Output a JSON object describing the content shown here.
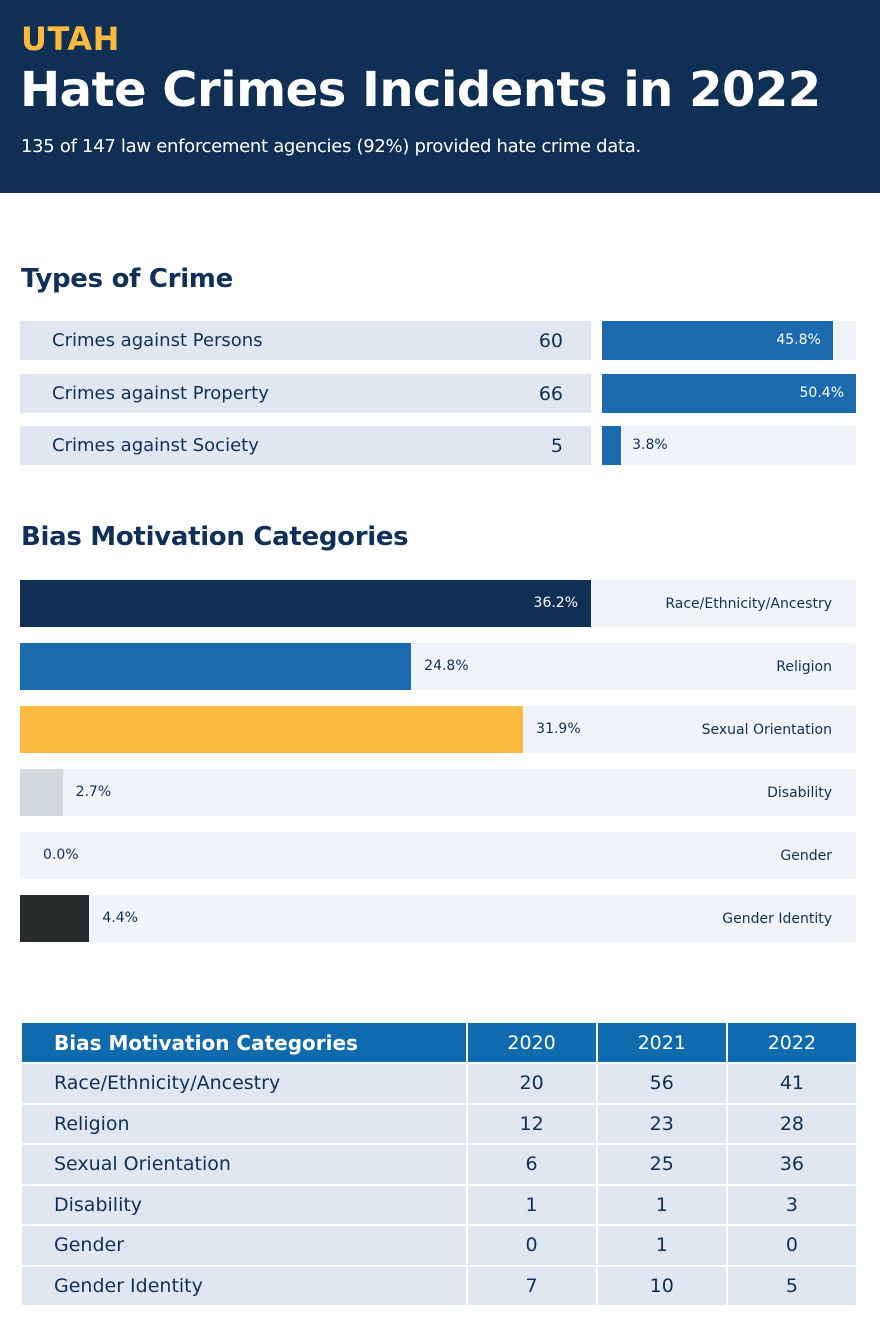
{
  "header": {
    "state": "UTAH",
    "title": "Hate Crimes Incidents in 2022",
    "subtitle": "135 of 147 law enforcement agencies (92%) provided hate crime data."
  },
  "colors": {
    "header_bg": "#0f2f55",
    "accent": "#fbb93f",
    "bar_blue": "#1a6aad",
    "table_header": "#0f6aae"
  },
  "chart_data": [
    {
      "type": "bar",
      "title": "Types of Crime",
      "categories": [
        "Crimes against Persons",
        "Crimes against Property",
        "Crimes against Society"
      ],
      "counts": [
        60,
        66,
        5
      ],
      "values": [
        45.8,
        50.4,
        3.8
      ],
      "labels": [
        "45.8%",
        "50.4%",
        "3.8%"
      ]
    },
    {
      "type": "bar",
      "title": "Bias Motivation Categories",
      "categories": [
        "Race/Ethnicity/Ancestry",
        "Religion",
        "Sexual Orientation",
        "Disability",
        "Gender",
        "Gender Identity"
      ],
      "values": [
        36.2,
        24.8,
        31.9,
        2.7,
        0.0,
        4.4
      ],
      "labels": [
        "36.2%",
        "24.8%",
        "31.9%",
        "2.7%",
        "0.0%",
        "4.4%"
      ],
      "colors": [
        "#0f2f55",
        "#1a6aad",
        "#fbb93f",
        "#d2d9de",
        "#d2d9de",
        "#262a2b"
      ]
    },
    {
      "type": "table",
      "columns": [
        "Bias Motivation Categories",
        "2020",
        "2021",
        "2022"
      ],
      "rows": [
        [
          "Race/Ethnicity/Ancestry",
          "20",
          "56",
          "41"
        ],
        [
          "Religion",
          "12",
          "23",
          "28"
        ],
        [
          "Sexual Orientation",
          "6",
          "25",
          "36"
        ],
        [
          "Disability",
          "1",
          "1",
          "3"
        ],
        [
          "Gender",
          "0",
          "1",
          "0"
        ],
        [
          "Gender Identity",
          "7",
          "10",
          "5"
        ]
      ]
    }
  ]
}
